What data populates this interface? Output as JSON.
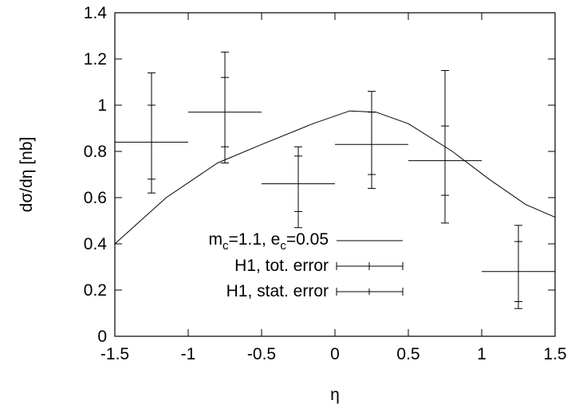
{
  "chart_data": {
    "type": "scatter",
    "xlabel": "η",
    "ylabel": "dσ/dη [nb]",
    "xlim": [
      -1.5,
      1.5
    ],
    "ylim": [
      0,
      1.4
    ],
    "x_ticks": [
      -1.5,
      -1,
      -0.5,
      0,
      0.5,
      1,
      1.5
    ],
    "x_tick_labels": [
      "-1.5",
      "-1",
      "-0.5",
      "0",
      "0.5",
      "1",
      "1.5"
    ],
    "y_ticks": [
      0,
      0.2,
      0.4,
      0.6,
      0.8,
      1,
      1.2,
      1.4
    ],
    "y_tick_labels": [
      "0",
      "0.2",
      "0.4",
      "0.6",
      "0.8",
      "1",
      "1.2",
      "1.4"
    ],
    "grid": false,
    "legend_position": "bottom-center",
    "legend": {
      "curve": {
        "main": "m",
        "sub1": "c",
        "mid": "=1.1, e",
        "sub2": "c",
        "tail": "=0.05"
      },
      "tot": "H1, tot. error",
      "stat": "H1, stat. error"
    },
    "series": [
      {
        "kind": "line",
        "x": [
          -1.5,
          -1.15,
          -0.8,
          -0.5,
          -0.15,
          0.1,
          0.28,
          0.5,
          0.8,
          1.05,
          1.3,
          1.5
        ],
        "y": [
          0.4,
          0.6,
          0.75,
          0.83,
          0.92,
          0.975,
          0.97,
          0.92,
          0.8,
          0.68,
          0.57,
          0.515
        ]
      },
      {
        "kind": "points",
        "x": [
          -1.25,
          -0.75,
          -0.25,
          0.25,
          0.75,
          1.25
        ],
        "x_err": [
          0.25,
          0.25,
          0.25,
          0.25,
          0.25,
          0.25
        ],
        "y": [
          0.84,
          0.97,
          0.66,
          0.83,
          0.76,
          0.28
        ],
        "y_tot": [
          [
            0.62,
            1.14
          ],
          [
            0.75,
            1.23
          ],
          [
            0.47,
            0.82
          ],
          [
            0.64,
            1.06
          ],
          [
            0.49,
            1.15
          ],
          [
            0.12,
            0.48
          ]
        ],
        "y_stat": [
          [
            0.68,
            1.0
          ],
          [
            0.82,
            1.12
          ],
          [
            0.54,
            0.78
          ],
          [
            0.7,
            0.97
          ],
          [
            0.61,
            0.91
          ],
          [
            0.15,
            0.41
          ]
        ]
      }
    ]
  }
}
